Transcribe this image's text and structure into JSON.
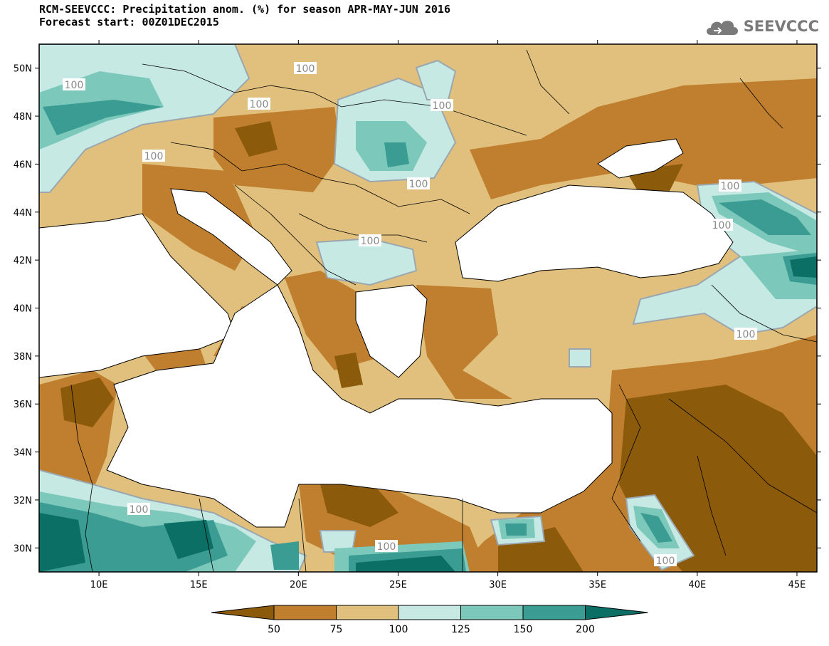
{
  "header": {
    "title_line1": "RCM-SEEVCCC: Precipitation anom. (%) for season APR-MAY-JUN 2016",
    "title_line2": "Forecast start: 00Z01DEC2015",
    "logo_text": "SEEVCCC",
    "logo_icon": "cloud-icon"
  },
  "map": {
    "lon_range": [
      7,
      46
    ],
    "lat_range": [
      29,
      51
    ],
    "lon_ticks": [
      "10E",
      "15E",
      "20E",
      "25E",
      "30E",
      "35E",
      "40E",
      "45E"
    ],
    "lat_ticks": [
      "50N",
      "48N",
      "46N",
      "44N",
      "42N",
      "40N",
      "38N",
      "36N",
      "34N",
      "32N",
      "30N"
    ],
    "contour_label": "100"
  },
  "legend": {
    "levels": [
      "50",
      "75",
      "100",
      "125",
      "150",
      "200"
    ],
    "colors": [
      "#8b5a0a",
      "#bf7f2f",
      "#e0c07c",
      "#c7e9e3",
      "#7cc9bb",
      "#3a9c92",
      "#0b6f66"
    ]
  },
  "colors": {
    "land_base": "#e0c07c",
    "dry": "#bf7f2f",
    "very_dry": "#8b5a0a",
    "wet": "#c7e9e3",
    "wetter": "#7cc9bb",
    "wettest": "#3a9c92",
    "extreme_wet": "#0b6f66",
    "sea": "#ffffff",
    "contour_line": "#9aa7b0"
  }
}
